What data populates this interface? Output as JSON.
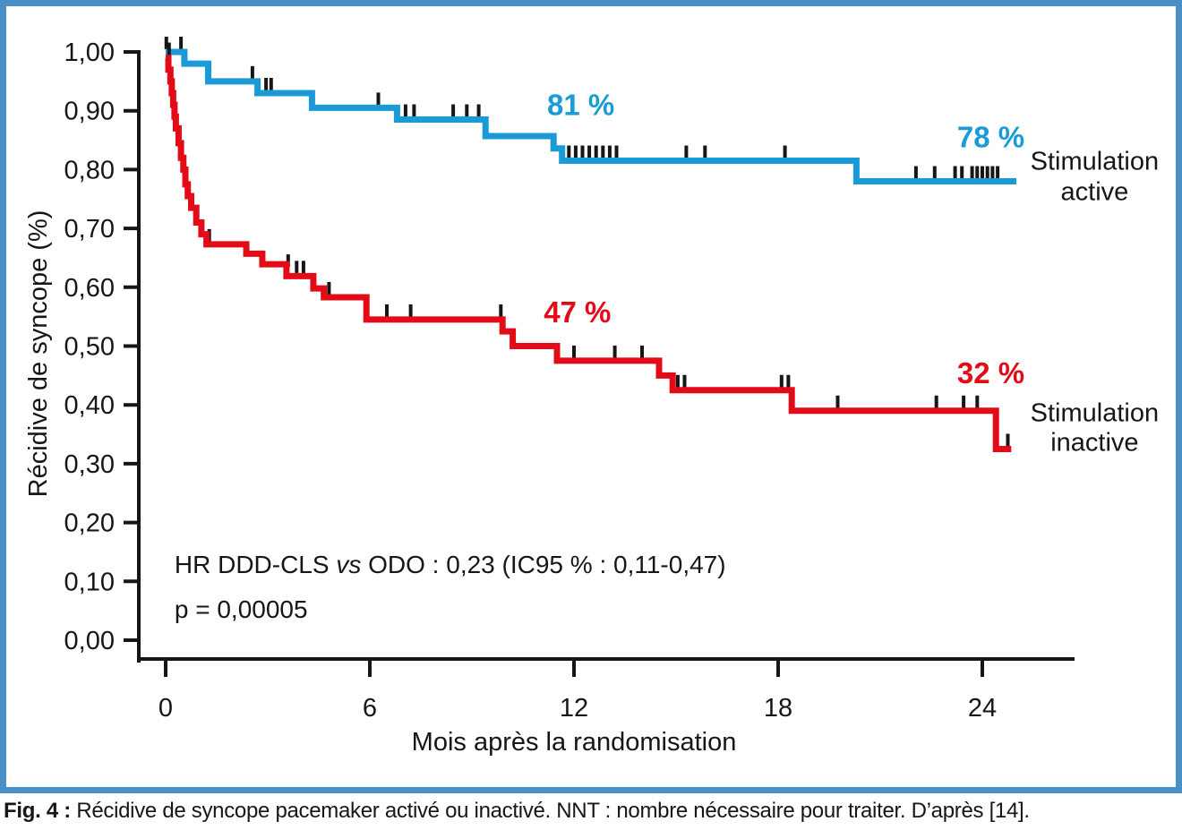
{
  "figure": {
    "border_color": "#4a90c7",
    "background": "#ffffff"
  },
  "caption": {
    "prefix": "Fig. 4 :",
    "text": "Récidive de syncope pacemaker activé ou inactivé. NNT : nombre nécessaire pour traiter. D’après [14]."
  },
  "chart_data": {
    "type": "line",
    "subtype": "kaplan_meier_step",
    "title": "",
    "xlabel": "Mois après la randomisation",
    "ylabel": "Récidive de syncope (%)",
    "xlim": [
      0,
      26.5
    ],
    "ylim": [
      0,
      1.0
    ],
    "grid": false,
    "axis_color": "#161616",
    "xticks": [
      {
        "value": 0,
        "label": "0"
      },
      {
        "value": 6,
        "label": "6"
      },
      {
        "value": 12,
        "label": "12"
      },
      {
        "value": 18,
        "label": "18"
      },
      {
        "value": 24,
        "label": "24"
      }
    ],
    "yticks": [
      {
        "value": 1.0,
        "label": "1,00"
      },
      {
        "value": 0.9,
        "label": "0,90"
      },
      {
        "value": 0.8,
        "label": "0,80"
      },
      {
        "value": 0.7,
        "label": "0,70"
      },
      {
        "value": 0.6,
        "label": "0,60"
      },
      {
        "value": 0.5,
        "label": "0,50"
      },
      {
        "value": 0.4,
        "label": "0,40"
      },
      {
        "value": 0.3,
        "label": "0,30"
      },
      {
        "value": 0.2,
        "label": "0,20"
      },
      {
        "value": 0.1,
        "label": "0,10"
      },
      {
        "value": 0.0,
        "label": "0,00"
      }
    ],
    "series": [
      {
        "name": "Stimulation active",
        "slug": "stimulation-active",
        "color": "#1a9ad6",
        "end_x": 25.0,
        "points": [
          [
            0,
            1.0
          ],
          [
            0.55,
            0.98
          ],
          [
            1.25,
            0.95
          ],
          [
            2.7,
            0.93
          ],
          [
            4.3,
            0.905
          ],
          [
            6.8,
            0.885
          ],
          [
            9.4,
            0.857
          ],
          [
            11.4,
            0.836
          ],
          [
            11.65,
            0.815
          ],
          [
            20.3,
            0.78
          ]
        ],
        "censors": [
          [
            0.02,
            1.0
          ],
          [
            0.45,
            1.0
          ],
          [
            2.55,
            0.95
          ],
          [
            2.95,
            0.93
          ],
          [
            3.1,
            0.93
          ],
          [
            6.25,
            0.905
          ],
          [
            7.05,
            0.885
          ],
          [
            7.3,
            0.885
          ],
          [
            8.45,
            0.885
          ],
          [
            8.85,
            0.885
          ],
          [
            9.2,
            0.885
          ],
          [
            11.85,
            0.815
          ],
          [
            12.05,
            0.815
          ],
          [
            12.25,
            0.815
          ],
          [
            12.45,
            0.815
          ],
          [
            12.65,
            0.815
          ],
          [
            12.85,
            0.815
          ],
          [
            13.05,
            0.815
          ],
          [
            13.25,
            0.815
          ],
          [
            15.3,
            0.815
          ],
          [
            15.85,
            0.815
          ],
          [
            18.2,
            0.815
          ],
          [
            22.05,
            0.78
          ],
          [
            22.6,
            0.78
          ],
          [
            23.2,
            0.78
          ],
          [
            23.4,
            0.78
          ],
          [
            23.7,
            0.78
          ],
          [
            23.85,
            0.78
          ],
          [
            24.0,
            0.78
          ],
          [
            24.15,
            0.78
          ],
          [
            24.3,
            0.78
          ],
          [
            24.45,
            0.78
          ]
        ]
      },
      {
        "name": "Stimulation inactive",
        "slug": "stimulation-inactive",
        "color": "#e30b17",
        "end_x": 24.85,
        "points": [
          [
            0,
            0.99
          ],
          [
            0.08,
            0.97
          ],
          [
            0.14,
            0.95
          ],
          [
            0.18,
            0.93
          ],
          [
            0.22,
            0.91
          ],
          [
            0.26,
            0.89
          ],
          [
            0.3,
            0.87
          ],
          [
            0.38,
            0.845
          ],
          [
            0.45,
            0.82
          ],
          [
            0.52,
            0.8
          ],
          [
            0.58,
            0.775
          ],
          [
            0.65,
            0.755
          ],
          [
            0.75,
            0.735
          ],
          [
            0.9,
            0.71
          ],
          [
            1.05,
            0.69
          ],
          [
            1.2,
            0.673
          ],
          [
            2.37,
            0.657
          ],
          [
            2.84,
            0.639
          ],
          [
            3.55,
            0.619
          ],
          [
            4.34,
            0.598
          ],
          [
            4.65,
            0.583
          ],
          [
            5.9,
            0.545
          ],
          [
            9.9,
            0.525
          ],
          [
            10.2,
            0.5
          ],
          [
            11.5,
            0.475
          ],
          [
            14.5,
            0.45
          ],
          [
            14.9,
            0.425
          ],
          [
            18.4,
            0.39
          ],
          [
            24.4,
            0.325
          ]
        ],
        "censors": [
          [
            0.1,
            0.99
          ],
          [
            0.24,
            0.9
          ],
          [
            1.28,
            0.673
          ],
          [
            3.6,
            0.63
          ],
          [
            3.85,
            0.619
          ],
          [
            4.05,
            0.619
          ],
          [
            4.8,
            0.583
          ],
          [
            6.5,
            0.545
          ],
          [
            7.2,
            0.545
          ],
          [
            9.85,
            0.545
          ],
          [
            12.0,
            0.475
          ],
          [
            13.2,
            0.475
          ],
          [
            14.0,
            0.475
          ],
          [
            15.05,
            0.425
          ],
          [
            15.25,
            0.425
          ],
          [
            18.1,
            0.425
          ],
          [
            18.3,
            0.425
          ],
          [
            19.75,
            0.39
          ],
          [
            22.65,
            0.39
          ],
          [
            23.45,
            0.39
          ],
          [
            23.85,
            0.39
          ],
          [
            24.75,
            0.325
          ]
        ]
      }
    ],
    "annotations": [
      {
        "name": "annotation-active-12mo",
        "text": "81 %",
        "x": 12.2,
        "y": 0.893,
        "color": "#1a9ad6",
        "bold": true,
        "size": 33,
        "anchor": "middle"
      },
      {
        "name": "annotation-active-24mo",
        "text": "78 %",
        "x": 24.25,
        "y": 0.838,
        "color": "#1a9ad6",
        "bold": true,
        "size": 33,
        "anchor": "middle"
      },
      {
        "name": "annotation-inactive-12mo",
        "text": "47 %",
        "x": 12.1,
        "y": 0.54,
        "color": "#e30b17",
        "bold": true,
        "size": 33,
        "anchor": "middle"
      },
      {
        "name": "annotation-inactive-24mo",
        "text": "32 %",
        "x": 24.25,
        "y": 0.437,
        "color": "#e30b17",
        "bold": true,
        "size": 33,
        "anchor": "middle"
      },
      {
        "name": "series-label-active-line1",
        "text": "Stimulation",
        "x": 27.3,
        "y": 0.8,
        "size": 29,
        "anchor": "middle"
      },
      {
        "name": "series-label-active-line2",
        "text": "active",
        "x": 27.3,
        "y": 0.748,
        "size": 29,
        "anchor": "middle"
      },
      {
        "name": "series-label-inactive-line1",
        "text": "Stimulation",
        "x": 27.3,
        "y": 0.372,
        "size": 29,
        "anchor": "middle"
      },
      {
        "name": "series-label-inactive-line2",
        "text": "inactive",
        "x": 27.3,
        "y": 0.322,
        "size": 29,
        "anchor": "middle"
      },
      {
        "name": "hr-stat-line",
        "parts": [
          {
            "t": "HR DDD-CLS "
          },
          {
            "t": "vs",
            "i": true
          },
          {
            "t": " ODO : 0,23 (IC95 % : 0,11-0,47)"
          }
        ],
        "x": 0.26,
        "y": 0.114,
        "size": 28,
        "anchor": "start"
      },
      {
        "name": "p-value-line",
        "text": "p = 0,00005",
        "x": 0.26,
        "y": 0.038,
        "size": 28,
        "anchor": "start"
      }
    ]
  }
}
